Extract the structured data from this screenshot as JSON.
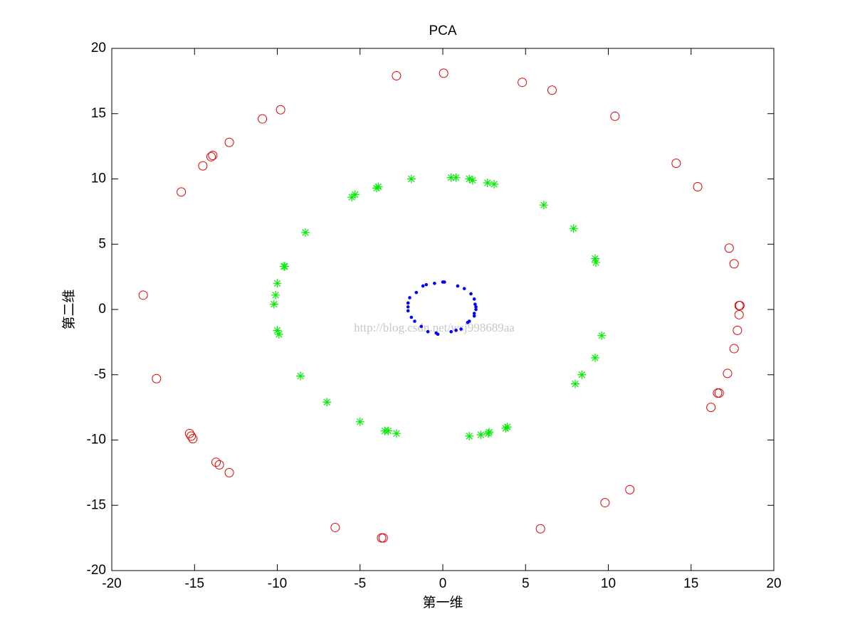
{
  "chart_data": {
    "type": "scatter",
    "title": "PCA",
    "xlabel": "第一维",
    "ylabel": "第二维",
    "annotation": "http://blog.csdn.net/wsj998689aa",
    "xlim": [
      -20,
      20
    ],
    "ylim": [
      -20,
      20
    ],
    "xticks": [
      -20,
      -15,
      -10,
      -5,
      0,
      5,
      10,
      15,
      20
    ],
    "yticks": [
      -20,
      -15,
      -10,
      -5,
      0,
      5,
      10,
      15,
      20
    ],
    "grid": false,
    "series": [
      {
        "color": "#e00000",
        "marker": "o",
        "x": [
          -2.8,
          0.05,
          4.8,
          6.6,
          10.4,
          14.1,
          15.4,
          17.3,
          17.6,
          17.9,
          17.95,
          17.9,
          17.8,
          17.6,
          17.2,
          16.7,
          16.6,
          16.2,
          11.3,
          9.8,
          5.9,
          -3.6,
          -3.7,
          -6.5,
          -12.9,
          -13.5,
          -13.7,
          -15.3,
          -15.1,
          -15.2,
          -17.3,
          -18.1,
          -15.8,
          -14.5,
          -14.0,
          -13.9,
          -12.9,
          -10.9,
          -9.8
        ],
        "y": [
          17.9,
          18.1,
          17.4,
          16.8,
          14.8,
          11.2,
          9.4,
          4.7,
          3.5,
          0.3,
          0.3,
          -0.4,
          -1.6,
          -3.0,
          -4.9,
          -6.4,
          -6.4,
          -7.5,
          -13.8,
          -14.8,
          -16.8,
          -17.5,
          -17.5,
          -16.7,
          -12.5,
          -11.9,
          -11.7,
          -9.5,
          -9.9,
          -9.7,
          -5.3,
          1.1,
          9.0,
          11.0,
          11.7,
          11.8,
          12.8,
          14.6,
          15.3
        ]
      },
      {
        "color": "#00ee00",
        "marker": "*",
        "x": [
          -1.9,
          0.5,
          0.8,
          1.6,
          1.8,
          2.7,
          3.1,
          6.1,
          7.9,
          9.2,
          9.25,
          9.6,
          9.2,
          8.4,
          8.0,
          3.9,
          3.8,
          2.8,
          2.75,
          2.3,
          1.6,
          -2.8,
          -3.3,
          -3.5,
          -5.0,
          -7.0,
          -8.6,
          -9.9,
          -10.0,
          -10.2,
          -10.1,
          -10.0,
          -9.6,
          -9.55,
          -8.3,
          -5.5,
          -5.3,
          -4.0,
          -3.9
        ],
        "y": [
          10.0,
          10.1,
          10.1,
          10.0,
          9.9,
          9.7,
          9.6,
          8.0,
          6.2,
          3.9,
          3.6,
          -2.0,
          -3.7,
          -5.0,
          -5.7,
          -9.0,
          -9.1,
          -9.4,
          -9.5,
          -9.6,
          -9.7,
          -9.5,
          -9.3,
          -9.3,
          -8.6,
          -7.1,
          -5.1,
          -1.9,
          -1.6,
          0.4,
          1.1,
          2.0,
          3.3,
          3.3,
          5.9,
          8.6,
          8.8,
          9.3,
          9.4
        ]
      },
      {
        "color": "#0000ff",
        "marker": ".",
        "x": [
          2.0,
          1.95,
          1.9,
          1.7,
          1.3,
          0.9,
          0.1,
          0.0,
          -0.5,
          -1.0,
          -1.2,
          -1.6,
          -2.0,
          -2.1,
          -2.1,
          -2.1,
          -1.9,
          -1.7,
          -1.3,
          -0.9,
          -0.4,
          -0.3,
          0.5,
          0.8,
          1.1,
          1.5,
          1.6,
          1.9,
          1.9,
          2.0
        ],
        "y": [
          0.0,
          0.4,
          0.8,
          1.2,
          1.6,
          1.8,
          2.1,
          2.1,
          2.0,
          1.9,
          1.8,
          1.3,
          0.9,
          0.5,
          0.2,
          -0.1,
          -0.6,
          -0.9,
          -1.3,
          -1.7,
          -1.8,
          -1.9,
          -1.7,
          -1.6,
          -1.5,
          -1.0,
          -0.9,
          -0.5,
          -0.3,
          0.2
        ]
      }
    ]
  }
}
